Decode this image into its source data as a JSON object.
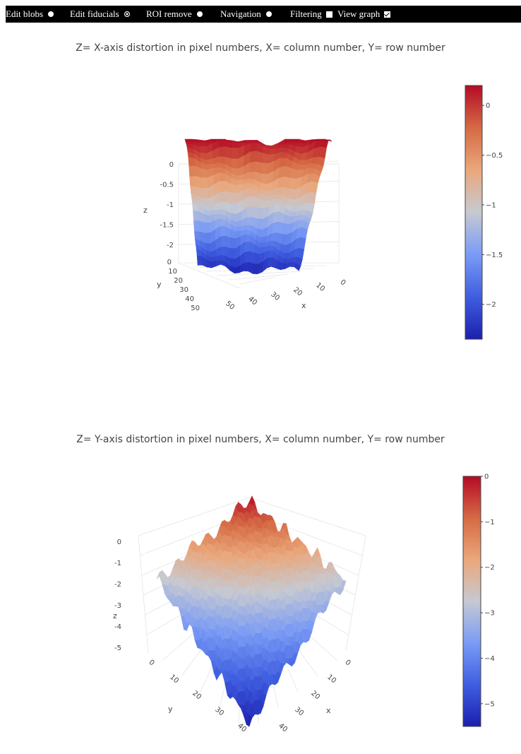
{
  "toolbar": {
    "items": [
      {
        "label": "Edit blobs",
        "control": "radio",
        "checked": false
      },
      {
        "label": "Edit fiducials",
        "control": "radio",
        "checked": true
      },
      {
        "label": "ROI remove",
        "control": "radio",
        "checked": false
      },
      {
        "label": "Navigation",
        "control": "radio",
        "checked": false
      },
      {
        "label": "Filtering",
        "control": "checkbox",
        "checked": false
      },
      {
        "label": "View graph",
        "control": "checkbox",
        "checked": true
      }
    ]
  },
  "colorscale": [
    "#1c1fae",
    "#3f5ee0",
    "#7a9bf5",
    "#c6c9d2",
    "#eaa77b",
    "#d56a44",
    "#b40b26"
  ],
  "chart_data": [
    {
      "type": "surface",
      "title": "Z= X-axis distortion in pixel numbers, X= column number, Y= row number",
      "xlabel": "x",
      "ylabel": "y",
      "zlabel": "z",
      "x_ticks": [
        "0",
        "10",
        "20",
        "30",
        "40",
        "50"
      ],
      "y_ticks": [
        "0",
        "10",
        "20",
        "30",
        "40",
        "50"
      ],
      "z_ticks": [
        "0",
        "-0.5",
        "-1",
        "-1.5",
        "-2"
      ],
      "zlim": [
        -2.35,
        0.2
      ],
      "colorbar_ticks": [
        "0",
        "−0.5",
        "−1",
        "−1.5",
        "−2"
      ],
      "shape": "v-valley",
      "z_min": -2.35,
      "z_max": 0.2
    },
    {
      "type": "surface",
      "title": "Z= Y-axis distortion in pixel numbers, X= column number, Y= row number",
      "xlabel": "x",
      "ylabel": "y",
      "zlabel": "z",
      "x_ticks": [
        "0",
        "10",
        "20",
        "30",
        "40"
      ],
      "y_ticks": [
        "0",
        "10",
        "20",
        "30",
        "40"
      ],
      "z_ticks": [
        "0",
        "-1",
        "-2",
        "-3",
        "-4",
        "-5"
      ],
      "zlim": [
        -5.5,
        0
      ],
      "colorbar_ticks": [
        "0",
        "−1",
        "−2",
        "−3",
        "−4",
        "−5"
      ],
      "shape": "tilted-plane",
      "z_min": -5.5,
      "z_max": 0
    }
  ]
}
